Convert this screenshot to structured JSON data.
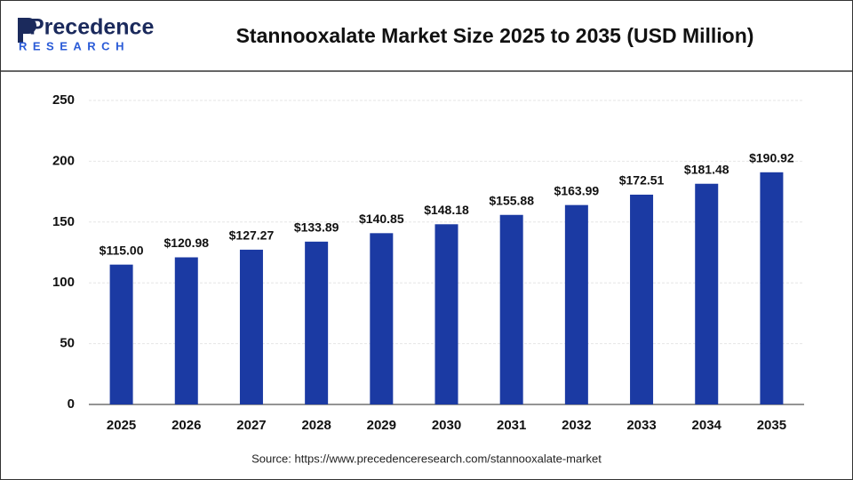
{
  "logo": {
    "name": "Precedence",
    "tagline": "RESEARCH"
  },
  "source": "Source: https://www.precedenceresearch.com/stannooxalate-market",
  "chart_data": {
    "type": "bar",
    "title": "Stannooxalate Market Size 2025 to 2035 (USD Million)",
    "categories": [
      "2025",
      "2026",
      "2027",
      "2028",
      "2029",
      "2030",
      "2031",
      "2032",
      "2033",
      "2034",
      "2035"
    ],
    "values": [
      115.0,
      120.98,
      127.27,
      133.89,
      140.85,
      148.18,
      155.88,
      163.99,
      172.51,
      181.48,
      190.92
    ],
    "value_labels": [
      "$115.00",
      "$120.98",
      "$127.27",
      "$133.89",
      "$140.85",
      "$148.18",
      "$155.88",
      "$163.99",
      "$172.51",
      "$181.48",
      "$190.92"
    ],
    "color": "#1b3aa3",
    "ylim": [
      0,
      250
    ],
    "yticks": [
      0,
      50,
      100,
      150,
      200,
      250
    ],
    "grid": true
  }
}
